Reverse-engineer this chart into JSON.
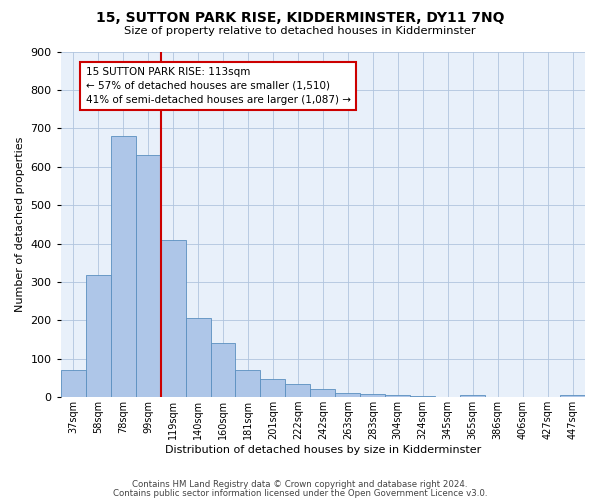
{
  "title": "15, SUTTON PARK RISE, KIDDERMINSTER, DY11 7NQ",
  "subtitle": "Size of property relative to detached houses in Kidderminster",
  "xlabel": "Distribution of detached houses by size in Kidderminster",
  "ylabel": "Number of detached properties",
  "categories": [
    "37sqm",
    "58sqm",
    "78sqm",
    "99sqm",
    "119sqm",
    "140sqm",
    "160sqm",
    "181sqm",
    "201sqm",
    "222sqm",
    "242sqm",
    "263sqm",
    "283sqm",
    "304sqm",
    "324sqm",
    "345sqm",
    "365sqm",
    "386sqm",
    "406sqm",
    "427sqm",
    "447sqm"
  ],
  "values": [
    72,
    318,
    680,
    630,
    410,
    207,
    140,
    70,
    47,
    33,
    20,
    10,
    9,
    5,
    4,
    0,
    5,
    0,
    0,
    0,
    5
  ],
  "bar_color": "#aec6e8",
  "bar_edge_color": "#5a8fc0",
  "property_line_x": 3.5,
  "property_line_color": "#cc0000",
  "annotation_text": "15 SUTTON PARK RISE: 113sqm\n← 57% of detached houses are smaller (1,510)\n41% of semi-detached houses are larger (1,087) →",
  "annotation_box_color": "#cc0000",
  "ylim": [
    0,
    900
  ],
  "yticks": [
    0,
    100,
    200,
    300,
    400,
    500,
    600,
    700,
    800,
    900
  ],
  "footer1": "Contains HM Land Registry data © Crown copyright and database right 2024.",
  "footer2": "Contains public sector information licensed under the Open Government Licence v3.0.",
  "grid_color": "#b0c4de",
  "background_color": "#e8f0fa",
  "fig_width": 6.0,
  "fig_height": 5.0,
  "dpi": 100
}
